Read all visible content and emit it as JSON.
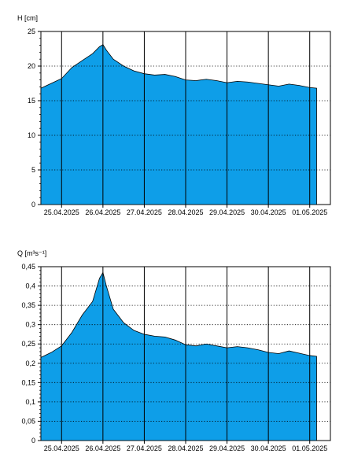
{
  "chart_data": [
    {
      "type": "area",
      "ylabel": "H [cm]",
      "ylim": [
        0,
        25
      ],
      "yticks": [
        0,
        5,
        10,
        15,
        20,
        25
      ],
      "ytick_labels": [
        "0",
        "5",
        "10",
        "15",
        "20",
        "25"
      ],
      "xlim": [
        "2025-04-24T12:00",
        "2025-05-01T12:00"
      ],
      "xticks": [
        "2025-04-25T00:00",
        "2025-04-26T00:00",
        "2025-04-27T00:00",
        "2025-04-28T00:00",
        "2025-04-29T00:00",
        "2025-04-30T00:00",
        "2025-05-01T00:00"
      ],
      "xtick_labels": [
        "25.04.2025",
        "26.04.2025",
        "27.04.2025",
        "28.04.2025",
        "29.04.2025",
        "30.04.2025",
        "01.05.2025"
      ],
      "grid": true,
      "fill_color": "#0e9ee8",
      "x": [
        "2025-04-24T12:00",
        "2025-04-24T18:00",
        "2025-04-25T00:00",
        "2025-04-25T06:00",
        "2025-04-25T12:00",
        "2025-04-25T18:00",
        "2025-04-25T22:00",
        "2025-04-26T00:00",
        "2025-04-26T02:00",
        "2025-04-26T06:00",
        "2025-04-26T12:00",
        "2025-04-26T18:00",
        "2025-04-27T00:00",
        "2025-04-27T06:00",
        "2025-04-27T12:00",
        "2025-04-27T18:00",
        "2025-04-28T00:00",
        "2025-04-28T06:00",
        "2025-04-28T12:00",
        "2025-04-28T18:00",
        "2025-04-29T00:00",
        "2025-04-29T06:00",
        "2025-04-29T12:00",
        "2025-04-29T18:00",
        "2025-04-30T00:00",
        "2025-04-30T06:00",
        "2025-04-30T12:00",
        "2025-04-30T18:00",
        "2025-05-01T00:00",
        "2025-05-01T04:00"
      ],
      "values": [
        16.8,
        17.5,
        18.2,
        19.8,
        20.8,
        21.8,
        22.8,
        23.1,
        22.3,
        21.0,
        20.0,
        19.3,
        18.9,
        18.7,
        18.8,
        18.5,
        18.0,
        17.9,
        18.1,
        17.9,
        17.6,
        17.8,
        17.7,
        17.5,
        17.3,
        17.1,
        17.4,
        17.2,
        16.9,
        16.8
      ]
    },
    {
      "type": "area",
      "ylabel": "Q [m³s⁻¹]",
      "ylim": [
        0,
        0.45
      ],
      "yticks": [
        0,
        0.05,
        0.1,
        0.15,
        0.2,
        0.25,
        0.3,
        0.35,
        0.4,
        0.45
      ],
      "ytick_labels": [
        "0",
        "0,05",
        "0,1",
        "0,15",
        "0,2",
        "0,25",
        "0,3",
        "0,35",
        "0,4",
        "0,45"
      ],
      "xlim": [
        "2025-04-24T12:00",
        "2025-05-01T12:00"
      ],
      "xticks": [
        "2025-04-25T00:00",
        "2025-04-26T00:00",
        "2025-04-27T00:00",
        "2025-04-28T00:00",
        "2025-04-29T00:00",
        "2025-04-30T00:00",
        "2025-05-01T00:00"
      ],
      "xtick_labels": [
        "25.04.2025",
        "26.04.2025",
        "27.04.2025",
        "28.04.2025",
        "29.04.2025",
        "30.04.2025",
        "01.05.2025"
      ],
      "grid": true,
      "fill_color": "#0e9ee8",
      "x": [
        "2025-04-24T12:00",
        "2025-04-24T18:00",
        "2025-04-25T00:00",
        "2025-04-25T06:00",
        "2025-04-25T12:00",
        "2025-04-25T18:00",
        "2025-04-25T22:00",
        "2025-04-26T00:00",
        "2025-04-26T02:00",
        "2025-04-26T06:00",
        "2025-04-26T12:00",
        "2025-04-26T18:00",
        "2025-04-27T00:00",
        "2025-04-27T06:00",
        "2025-04-27T12:00",
        "2025-04-27T18:00",
        "2025-04-28T00:00",
        "2025-04-28T06:00",
        "2025-04-28T12:00",
        "2025-04-28T18:00",
        "2025-04-29T00:00",
        "2025-04-29T06:00",
        "2025-04-29T12:00",
        "2025-04-29T18:00",
        "2025-04-30T00:00",
        "2025-04-30T06:00",
        "2025-04-30T12:00",
        "2025-04-30T18:00",
        "2025-05-01T00:00",
        "2025-05-01T04:00"
      ],
      "values": [
        0.215,
        0.228,
        0.245,
        0.28,
        0.325,
        0.36,
        0.42,
        0.435,
        0.4,
        0.34,
        0.305,
        0.285,
        0.275,
        0.27,
        0.268,
        0.26,
        0.248,
        0.245,
        0.25,
        0.245,
        0.24,
        0.243,
        0.24,
        0.235,
        0.228,
        0.225,
        0.232,
        0.226,
        0.22,
        0.218
      ]
    }
  ]
}
